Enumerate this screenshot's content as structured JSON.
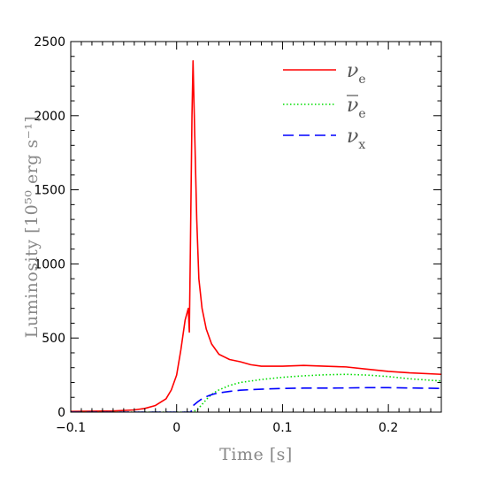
{
  "chart_data": {
    "type": "line",
    "xlabel": "Time [s]",
    "ylabel": "Luminosity [10⁵⁰ erg s⁻¹]",
    "xlim": [
      -0.1,
      0.25
    ],
    "ylim": [
      0,
      2500
    ],
    "x_ticks": [
      -0.1,
      0,
      0.1,
      0.2
    ],
    "x_tick_labels": [
      "−0.1",
      "0",
      "0.1",
      "0.2"
    ],
    "y_ticks": [
      0,
      500,
      1000,
      1500,
      2000,
      2500
    ],
    "y_tick_labels": [
      "0",
      "500",
      "1000",
      "1500",
      "2000",
      "2500"
    ],
    "grid": false,
    "legend_position": "top-right",
    "series": [
      {
        "name": "ν e",
        "symbol": "ν",
        "subscript": "e",
        "overline": false,
        "color": "#ff0000",
        "style": "solid",
        "x": [
          -0.1,
          -0.06,
          -0.04,
          -0.03,
          -0.02,
          -0.01,
          -0.005,
          0,
          0.004,
          0.008,
          0.011,
          0.012,
          0.013,
          0.0145,
          0.0155,
          0.017,
          0.019,
          0.021,
          0.024,
          0.028,
          0.033,
          0.04,
          0.05,
          0.06,
          0.07,
          0.08,
          0.1,
          0.12,
          0.14,
          0.16,
          0.18,
          0.2,
          0.22,
          0.25
        ],
        "y": [
          5,
          8,
          15,
          25,
          45,
          90,
          150,
          250,
          420,
          620,
          700,
          540,
          1100,
          2000,
          2370,
          1900,
          1300,
          900,
          700,
          560,
          460,
          390,
          355,
          340,
          320,
          310,
          310,
          315,
          310,
          305,
          290,
          275,
          265,
          255
        ]
      },
      {
        "name": "ν e",
        "symbol": "ν",
        "subscript": "e",
        "overline": true,
        "color": "#00dd00",
        "style": "dotted",
        "x": [
          -0.1,
          0,
          0.015,
          0.02,
          0.025,
          0.03,
          0.035,
          0.04,
          0.05,
          0.06,
          0.08,
          0.1,
          0.12,
          0.14,
          0.16,
          0.18,
          0.2,
          0.22,
          0.25
        ],
        "y": [
          0,
          0,
          0,
          20,
          60,
          100,
          130,
          150,
          180,
          200,
          220,
          235,
          245,
          252,
          255,
          250,
          240,
          225,
          210
        ]
      },
      {
        "name": "ν x",
        "symbol": "ν",
        "subscript": "x",
        "overline": false,
        "color": "#0000ff",
        "style": "dashed",
        "x": [
          -0.1,
          0,
          0.0135,
          0.015,
          0.02,
          0.025,
          0.03,
          0.035,
          0.04,
          0.05,
          0.06,
          0.08,
          0.1,
          0.12,
          0.14,
          0.16,
          0.18,
          0.2,
          0.22,
          0.25
        ],
        "y": [
          0,
          0,
          0,
          40,
          70,
          95,
          110,
          122,
          130,
          140,
          148,
          155,
          160,
          162,
          162,
          163,
          165,
          165,
          163,
          160
        ]
      }
    ]
  }
}
